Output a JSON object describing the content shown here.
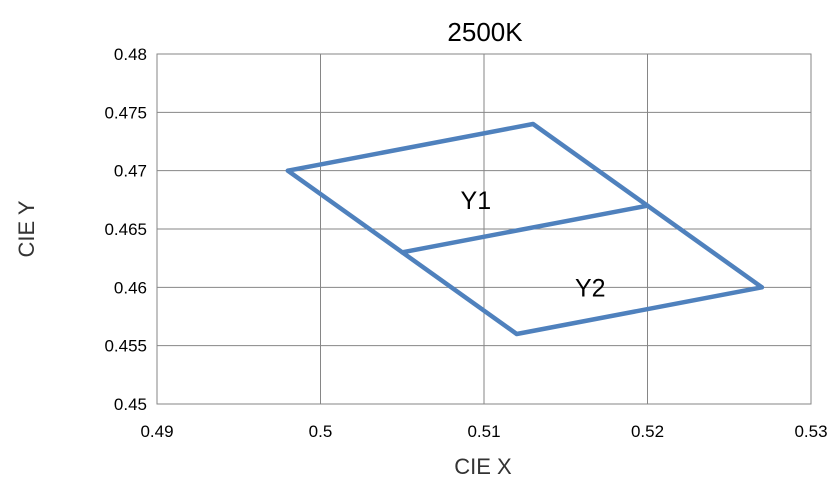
{
  "chart_data": {
    "type": "line",
    "title": "2500K",
    "xlabel": "CIE X",
    "ylabel": "CIE Y",
    "xlim": [
      0.49,
      0.53
    ],
    "ylim": [
      0.45,
      0.48
    ],
    "x_ticks": [
      "0.49",
      "0.5",
      "0.51",
      "0.52",
      "0.53"
    ],
    "y_ticks": [
      "0.45",
      "0.455",
      "0.46",
      "0.465",
      "0.47",
      "0.475",
      "0.48"
    ],
    "grid": true,
    "legend": "none",
    "series_color": "#4F81BD",
    "series": [
      {
        "points": [
          [
            0.498,
            0.47
          ],
          [
            0.513,
            0.474
          ],
          [
            0.52,
            0.467
          ],
          [
            0.527,
            0.46
          ],
          [
            0.512,
            0.456
          ],
          [
            0.505,
            0.463
          ],
          [
            0.498,
            0.47
          ]
        ]
      },
      {
        "points": [
          [
            0.505,
            0.463
          ],
          [
            0.52,
            0.467
          ]
        ]
      }
    ],
    "annotations": [
      {
        "text": "Y1",
        "x": 0.5095,
        "y": 0.4675
      },
      {
        "text": "Y2",
        "x": 0.5165,
        "y": 0.46
      }
    ]
  }
}
